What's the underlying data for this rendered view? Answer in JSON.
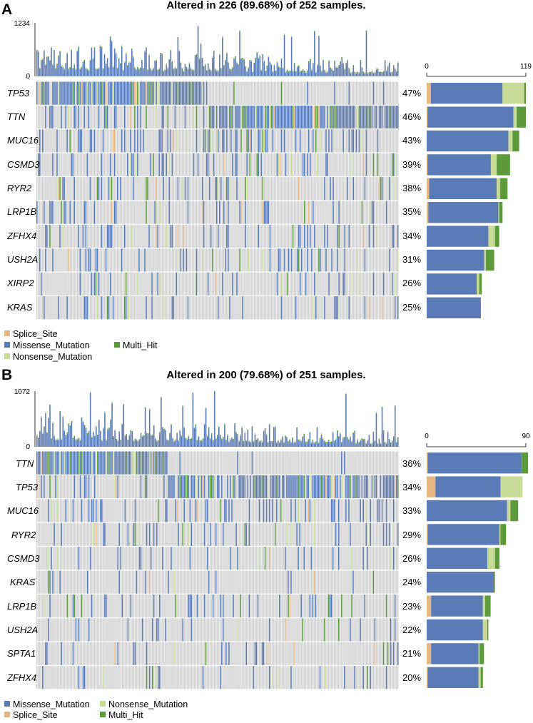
{
  "colors": {
    "Missense_Mutation": "#5b7bb7",
    "Nonsense_Mutation": "#c7db96",
    "Splice_Site": "#e5b780",
    "Multi_Hit": "#5c9a3b",
    "background": "#d4d4d4"
  },
  "chart_data": [
    {
      "type": "oncoplot",
      "panel_label": "A",
      "title": "Altered in 226 (89.68%) of 252 samples.",
      "n_samples": 252,
      "tmb_max": 1234,
      "tmb_axis_labels": [
        "1234",
        "0"
      ],
      "genes": [
        "TP53",
        "TTN",
        "MUC16",
        "CSMD3",
        "RYR2",
        "LRP1B",
        "ZFHX4",
        "USH2A",
        "XIRP2",
        "KRAS"
      ],
      "percent_labels": [
        "47%",
        "46%",
        "43%",
        "39%",
        "38%",
        "35%",
        "34%",
        "31%",
        "26%",
        "25%"
      ],
      "side_axis_labels": [
        "0",
        "119"
      ],
      "side_max": 119,
      "side_counts": [
        {
          "Splice_Site": 5,
          "Missense_Mutation": 86,
          "Nonsense_Mutation": 26,
          "Multi_Hit": 2
        },
        {
          "Splice_Site": 1,
          "Missense_Mutation": 103,
          "Nonsense_Mutation": 4,
          "Multi_Hit": 11
        },
        {
          "Splice_Site": 0,
          "Missense_Mutation": 98,
          "Nonsense_Mutation": 5,
          "Multi_Hit": 8
        },
        {
          "Splice_Site": 1,
          "Missense_Mutation": 76,
          "Nonsense_Mutation": 7,
          "Multi_Hit": 16
        },
        {
          "Splice_Site": 3,
          "Missense_Mutation": 81,
          "Nonsense_Mutation": 4,
          "Multi_Hit": 9
        },
        {
          "Splice_Site": 2,
          "Missense_Mutation": 84,
          "Nonsense_Mutation": 1,
          "Multi_Hit": 4
        },
        {
          "Splice_Site": 0,
          "Missense_Mutation": 74,
          "Nonsense_Mutation": 8,
          "Multi_Hit": 5
        },
        {
          "Splice_Site": 0,
          "Missense_Mutation": 69,
          "Nonsense_Mutation": 2,
          "Multi_Hit": 10
        },
        {
          "Splice_Site": 0,
          "Missense_Mutation": 60,
          "Nonsense_Mutation": 3,
          "Multi_Hit": 3
        },
        {
          "Splice_Site": 0,
          "Missense_Mutation": 65,
          "Nonsense_Mutation": 0,
          "Multi_Hit": 0
        }
      ],
      "legend": [
        "Splice_Site",
        "Missense_Mutation",
        "Multi_Hit",
        "Nonsense_Mutation"
      ]
    },
    {
      "type": "oncoplot",
      "panel_label": "B",
      "title": "Altered in 200 (79.68%) of 251 samples.",
      "n_samples": 251,
      "tmb_max": 1072,
      "tmb_axis_labels": [
        "1072",
        "0"
      ],
      "genes": [
        "TTN",
        "TP53",
        "MUC16",
        "RYR2",
        "CSMD3",
        "KRAS",
        "LRP1B",
        "USH2A",
        "SPTA1",
        "ZFHX4"
      ],
      "percent_labels": [
        "36%",
        "34%",
        "33%",
        "29%",
        "26%",
        "24%",
        "23%",
        "22%",
        "21%",
        "20%"
      ],
      "side_axis_labels": [
        "0",
        "90"
      ],
      "side_max": 90,
      "side_counts": [
        {
          "Missense_Mutation": 85,
          "Splice_Site": 1,
          "Nonsense_Mutation": 0,
          "Multi_Hit": 6
        },
        {
          "Missense_Mutation": 59,
          "Splice_Site": 8,
          "Nonsense_Mutation": 20,
          "Multi_Hit": 0
        },
        {
          "Missense_Mutation": 73,
          "Splice_Site": 0,
          "Nonsense_Mutation": 3,
          "Multi_Hit": 7
        },
        {
          "Missense_Mutation": 65,
          "Splice_Site": 1,
          "Nonsense_Mutation": 1,
          "Multi_Hit": 5
        },
        {
          "Missense_Mutation": 55,
          "Splice_Site": 0,
          "Nonsense_Mutation": 7,
          "Multi_Hit": 4
        },
        {
          "Missense_Mutation": 61,
          "Splice_Site": 0,
          "Nonsense_Mutation": 0,
          "Multi_Hit": 1
        },
        {
          "Missense_Mutation": 47,
          "Splice_Site": 4,
          "Nonsense_Mutation": 2,
          "Multi_Hit": 5
        },
        {
          "Missense_Mutation": 51,
          "Splice_Site": 0,
          "Nonsense_Mutation": 4,
          "Multi_Hit": 1
        },
        {
          "Missense_Mutation": 43,
          "Splice_Site": 4,
          "Nonsense_Mutation": 1,
          "Multi_Hit": 4
        },
        {
          "Missense_Mutation": 46,
          "Splice_Site": 1,
          "Nonsense_Mutation": 2,
          "Multi_Hit": 2
        }
      ],
      "legend": [
        "Missense_Mutation",
        "Nonsense_Mutation",
        "Splice_Site",
        "Multi_Hit"
      ]
    }
  ]
}
